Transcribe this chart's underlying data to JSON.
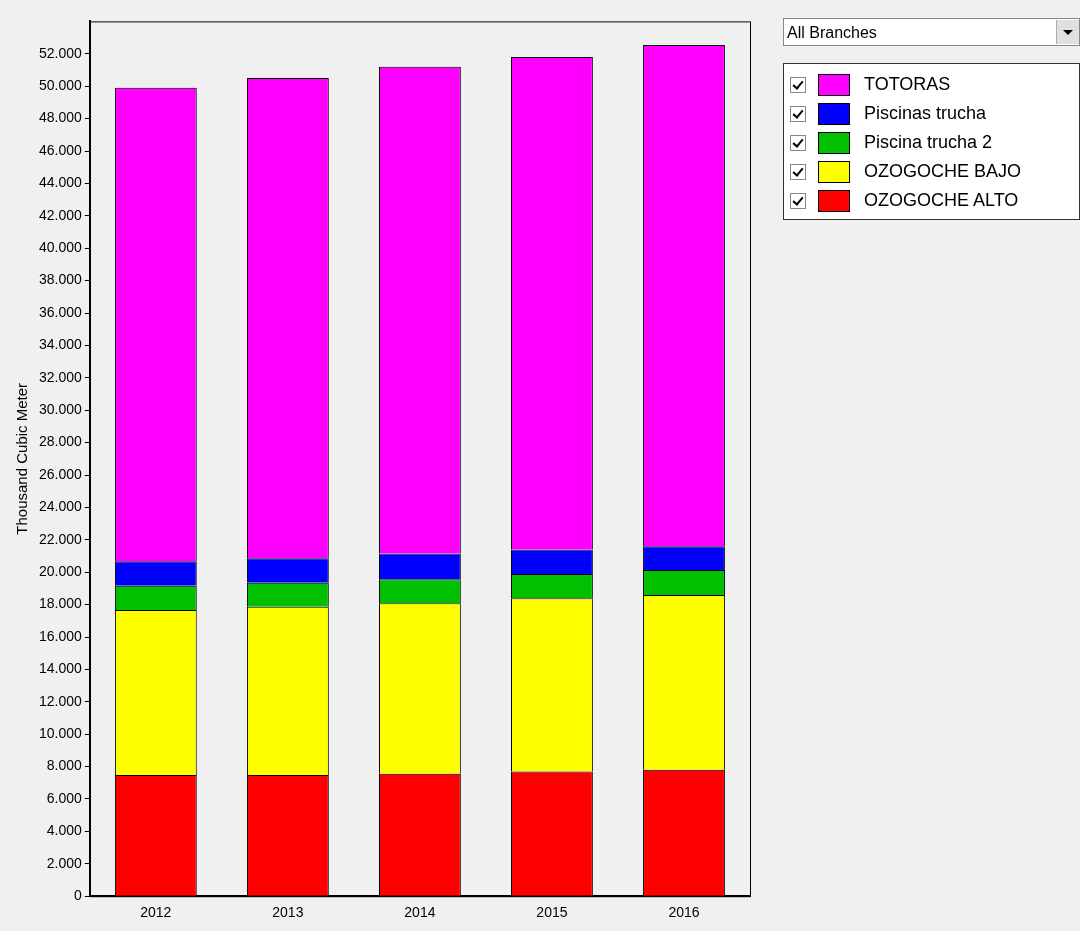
{
  "chart_data": {
    "type": "bar",
    "stacked": true,
    "ylabel": "Thousand Cubic Meter",
    "annotations": [
      "All Branches"
    ],
    "categories": [
      "2012",
      "2013",
      "2014",
      "2015",
      "2016"
    ],
    "series": [
      {
        "name": "OZOGOCHE ALTO",
        "color": "#ff0000",
        "values": [
          7480,
          7480,
          7560,
          7690,
          7800
        ]
      },
      {
        "name": "OZOGOCHE BAJO",
        "color": "#ffff00",
        "values": [
          10180,
          10390,
          10520,
          10700,
          10790
        ]
      },
      {
        "name": "Piscina trucha 2",
        "color": "#00c000",
        "values": [
          1510,
          1480,
          1480,
          1500,
          1550
        ]
      },
      {
        "name": "Piscinas trucha",
        "color": "#0000ff",
        "values": [
          1500,
          1510,
          1600,
          1510,
          1460
        ]
      },
      {
        "name": "TOTORAS",
        "color": "#ff00ff",
        "values": [
          29230,
          29640,
          30040,
          30400,
          30950
        ]
      }
    ],
    "ylim": [
      0,
      54000
    ],
    "yticks": [
      0,
      {
        "value": 2000,
        "label": "2.000"
      },
      {
        "value": 4000,
        "label": "4.000"
      },
      {
        "value": 6000,
        "label": "6.000"
      },
      {
        "value": 8000,
        "label": "8.000"
      },
      {
        "value": 10000,
        "label": "10.000"
      },
      {
        "value": 12000,
        "label": "12.000"
      },
      {
        "value": 14000,
        "label": "14.000"
      },
      {
        "value": 16000,
        "label": "16.000"
      },
      {
        "value": 18000,
        "label": "18.000"
      },
      {
        "value": 20000,
        "label": "20.000"
      },
      {
        "value": 22000,
        "label": "22.000"
      },
      {
        "value": 24000,
        "label": "24.000"
      },
      {
        "value": 26000,
        "label": "26.000"
      },
      {
        "value": 28000,
        "label": "28.000"
      },
      {
        "value": 30000,
        "label": "30.000"
      },
      {
        "value": 32000,
        "label": "32.000"
      },
      {
        "value": 34000,
        "label": "34.000"
      },
      {
        "value": 36000,
        "label": "36.000"
      },
      {
        "value": 38000,
        "label": "38.000"
      },
      {
        "value": 40000,
        "label": "40.000"
      },
      {
        "value": 42000,
        "label": "42.000"
      },
      {
        "value": 44000,
        "label": "44.000"
      },
      {
        "value": 46000,
        "label": "46.000"
      },
      {
        "value": 48000,
        "label": "48.000"
      },
      {
        "value": 50000,
        "label": "50.000"
      },
      {
        "value": 52000,
        "label": "52.000"
      }
    ],
    "grid": false,
    "legend": "top right"
  }
}
